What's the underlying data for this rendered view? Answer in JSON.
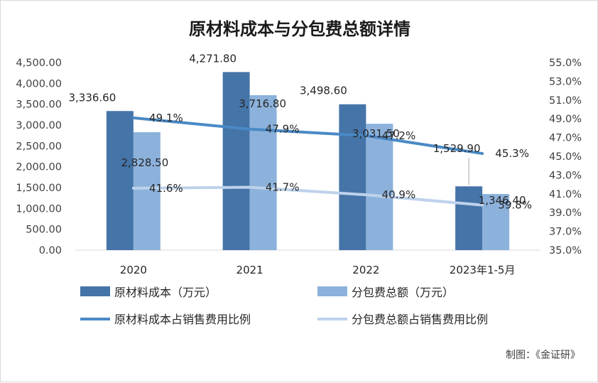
{
  "chart_data": {
    "type": "bar",
    "title": "原材料成本与分包费总额详情",
    "categories": [
      "2020",
      "2021",
      "2022",
      "2023年1-5月"
    ],
    "bar_series": [
      {
        "name": "原材料成本（万元）",
        "values": [
          3336.6,
          4271.8,
          3498.6,
          1529.9
        ],
        "labels": [
          "3,336.60",
          "4,271.80",
          "3,498.60",
          "1,529.90"
        ],
        "color": "#4574A8"
      },
      {
        "name": "分包费总额（万元）",
        "values": [
          2828.5,
          3716.8,
          3031.5,
          1346.4
        ],
        "labels": [
          "2,828.50",
          "3,716.80",
          "3,031.50",
          "1,346.40"
        ],
        "color": "#8CB2DC"
      }
    ],
    "line_series": [
      {
        "name": "原材料成本占销售费用比例",
        "values": [
          49.1,
          47.9,
          47.2,
          45.3
        ],
        "labels": [
          "49.1%",
          "47.9%",
          "47.2%",
          "45.3%"
        ],
        "color": "#4A89C6"
      },
      {
        "name": "分包费总额占销售费用比例",
        "values": [
          41.6,
          41.7,
          40.9,
          39.8
        ],
        "labels": [
          "41.6%",
          "41.7%",
          "40.9%",
          "39.8%"
        ],
        "color": "#BDD2EB"
      }
    ],
    "y_left": {
      "min": 0,
      "max": 4500,
      "step": 500,
      "tick_labels": [
        "0.00",
        "500.00",
        "1,000.00",
        "1,500.00",
        "2,000.00",
        "2,500.00",
        "3,000.00",
        "3,500.00",
        "4,000.00",
        "4,500.00"
      ]
    },
    "y_right": {
      "min": 35,
      "max": 55,
      "step": 2,
      "tick_labels": [
        "35.0%",
        "37.0%",
        "39.0%",
        "41.0%",
        "43.0%",
        "45.0%",
        "47.0%",
        "49.0%",
        "51.0%",
        "53.0%",
        "55.0%"
      ]
    },
    "grid": false,
    "legend_position": "bottom",
    "credit": "制图：《金证研》"
  }
}
